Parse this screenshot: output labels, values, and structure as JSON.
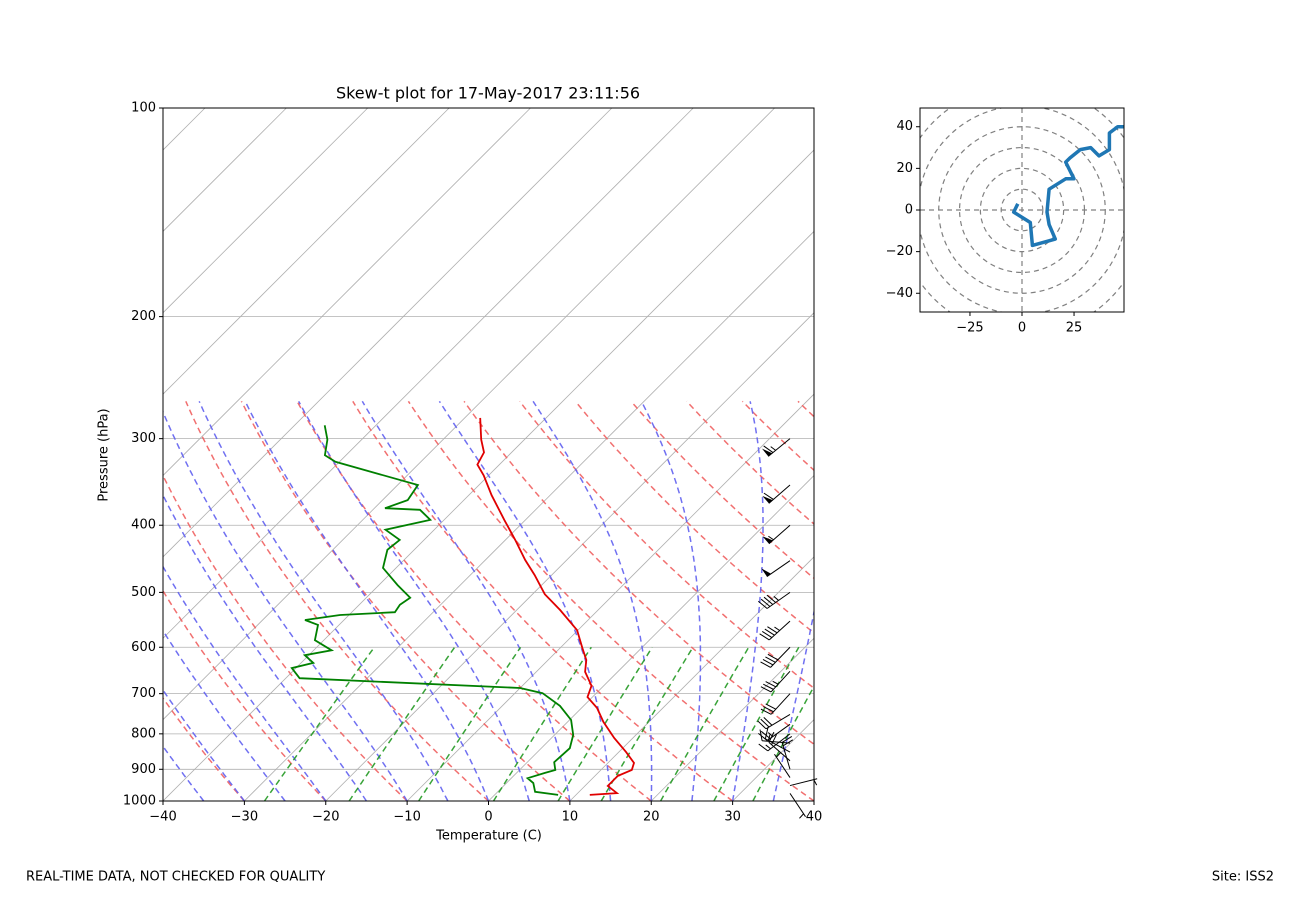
{
  "chart_data": [
    {
      "type": "skewt",
      "title": "Skew-t plot for 17-May-2017 23:11:56",
      "xlabel": "Temperature (C)",
      "ylabel": "Pressure (hPa)",
      "xlim": [
        -40,
        40
      ],
      "ylim": [
        1000,
        100
      ],
      "log_y": true,
      "grid": true,
      "xticks": [
        {
          "value": -40,
          "label": "−40"
        },
        {
          "value": -30,
          "label": "−30"
        },
        {
          "value": -20,
          "label": "−20"
        },
        {
          "value": -10,
          "label": "−10"
        },
        0,
        10,
        20,
        30,
        40
      ],
      "yticks": [
        1000,
        900,
        800,
        700,
        600,
        500,
        400,
        300,
        200,
        100
      ],
      "series": [
        {
          "color": "#e00000",
          "pressure": [
            980,
            974,
            951,
            920,
            902,
            881,
            850,
            811,
            769,
            734,
            708,
            682,
            651,
            626,
            601,
            567,
            530,
            503,
            472,
            449,
            420,
            393,
            362,
            339,
            327,
            314,
            301,
            280
          ],
          "values": [
            11.7,
            14.8,
            12.8,
            12.8,
            13.8,
            13.2,
            10.9,
            7.7,
            4.4,
            1.9,
            -0.6,
            -1.5,
            -4,
            -5.3,
            -7.3,
            -10.1,
            -14.7,
            -18.5,
            -22.1,
            -25.1,
            -28.8,
            -32.6,
            -37.2,
            -40.6,
            -42.7,
            -43.4,
            -45.3,
            -48.1
          ]
        },
        {
          "color": "#008000",
          "pressure": [
            980,
            970,
            942,
            927,
            911,
            902,
            879,
            839,
            803,
            764,
            729,
            699,
            687,
            665,
            643,
            632,
            616,
            606,
            586,
            557,
            548,
            539,
            534,
            521,
            509,
            488,
            461,
            434,
            420,
            406,
            393,
            380,
            378,
            368,
            350,
            324,
            317,
            301,
            287
          ],
          "values": [
            7.8,
            4.6,
            3.3,
            2,
            3.5,
            4.4,
            3.3,
            3.5,
            2.3,
            0.2,
            -2.9,
            -6.6,
            -10,
            -38.3,
            -40.5,
            -38.5,
            -40.5,
            -37.8,
            -41.1,
            -42.6,
            -44.8,
            -41.1,
            -34.7,
            -35,
            -34.6,
            -37.7,
            -41.6,
            -43.3,
            -43,
            -46,
            -41.7,
            -44.2,
            -48.7,
            -46.9,
            -47.5,
            -60.5,
            -62.6,
            -64.2,
            -66.3
          ]
        }
      ]
    },
    {
      "type": "hodograph",
      "color": "#1f77b4",
      "xlim": [
        -49,
        49
      ],
      "ylim": [
        -49,
        49
      ],
      "xticks": [
        {
          "value": -25,
          "label": "−25"
        },
        0,
        25
      ],
      "yticks": [
        {
          "value": -40,
          "label": "−40"
        },
        {
          "value": -20,
          "label": "−20"
        },
        0,
        20,
        40
      ],
      "pressure": [
        975,
        950,
        925,
        900,
        875,
        850,
        825,
        800,
        775,
        750,
        700,
        650,
        600,
        550,
        500,
        450,
        400,
        350,
        300
      ],
      "u": [
        -2,
        -4,
        4,
        5,
        16,
        13,
        12,
        13,
        21,
        25,
        21,
        23,
        28,
        33,
        37,
        42,
        42,
        46,
        49
      ],
      "v": [
        3,
        -1,
        -6,
        -17,
        -14,
        -7,
        -1,
        10,
        15,
        15,
        23,
        25,
        29,
        30,
        26,
        29,
        37,
        40,
        40
      ]
    }
  ],
  "footer_left": "REAL-TIME DATA, NOT CHECKED FOR QUALITY",
  "footer_right": "Site: ISS2"
}
